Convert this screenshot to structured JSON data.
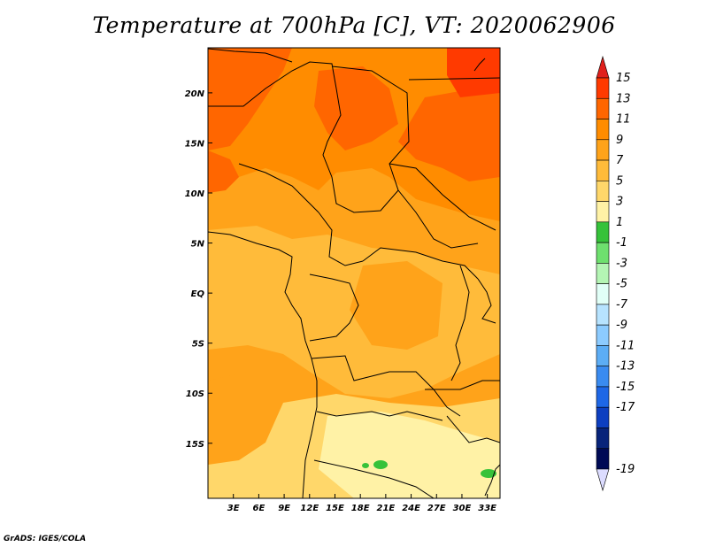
{
  "title": "Temperature at 700hPa [C], VT: 2020062906",
  "credit": "GrADS: IGES/COLA",
  "map": {
    "lon_range": [
      0,
      34.5
    ],
    "lat_range": [
      -20.5,
      24.5
    ],
    "lon_ticks": [
      "3E",
      "6E",
      "9E",
      "12E",
      "15E",
      "18E",
      "21E",
      "24E",
      "27E",
      "30E",
      "33E"
    ],
    "lat_ticks": [
      "20N",
      "15N",
      "10N",
      "5N",
      "EQ",
      "5S",
      "10S",
      "15S"
    ],
    "lat_tick_values": [
      20,
      15,
      10,
      5,
      0,
      -5,
      -10,
      -15
    ]
  },
  "colorbar": {
    "labels": [
      "15",
      "13",
      "11",
      "9",
      "7",
      "5",
      "3",
      "1",
      "-1",
      "-3",
      "-5",
      "-7",
      "-9",
      "-11",
      "-13",
      "-15",
      "-17",
      "-19"
    ],
    "colors": [
      "#ff3a00",
      "#ff6600",
      "#ff8c00",
      "#ffa31a",
      "#ffbb3a",
      "#ffd76a",
      "#fff2a6",
      "#36c23a",
      "#6ee06e",
      "#b4f5b4",
      "#e1fff7",
      "#b7e3ff",
      "#8ccbff",
      "#5cadf5",
      "#3a8bf0",
      "#1e67e6",
      "#0d3fc0",
      "#08247a",
      "#000a55"
    ],
    "top_arrow_color": "#e0201c",
    "bottom_arrow_color": "#dcdcff"
  }
}
